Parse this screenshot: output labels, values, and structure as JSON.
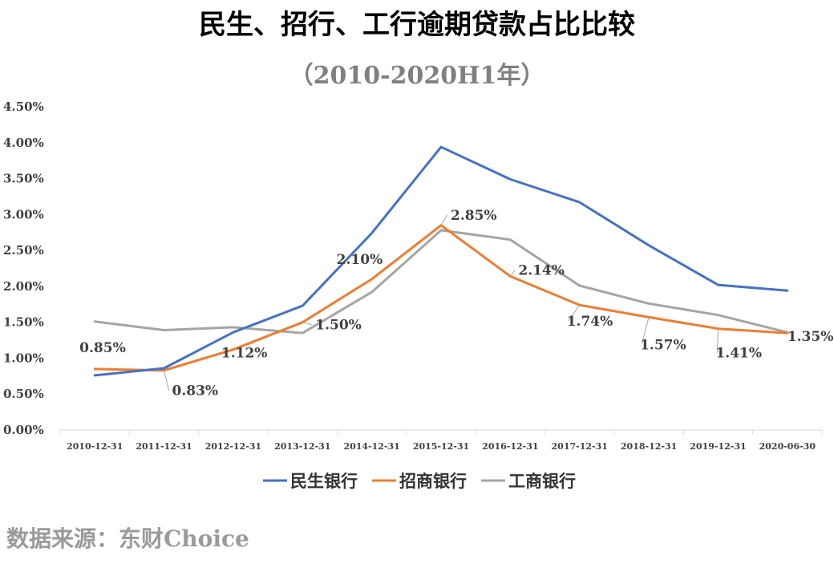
{
  "chart_data": {
    "type": "line",
    "title": "民生、招行、工行逾期贷款占比比较",
    "subtitle": "（2010-2020H1年）",
    "categories": [
      "2010-12-31",
      "2011-12-31",
      "2012-12-31",
      "2013-12-31",
      "2014-12-31",
      "2015-12-31",
      "2016-12-31",
      "2017-12-31",
      "2018-12-31",
      "2019-12-31",
      "2020-06-30"
    ],
    "ylim": [
      0,
      4.5
    ],
    "yticks": [
      "0.00%",
      "0.50%",
      "1.00%",
      "1.50%",
      "2.00%",
      "2.50%",
      "3.00%",
      "3.50%",
      "4.00%",
      "4.50%"
    ],
    "grid": false,
    "legend_position": "bottom",
    "series": [
      {
        "name": "民生银行",
        "color": "#4472c4",
        "values": [
          0.76,
          0.86,
          1.36,
          1.73,
          2.74,
          3.94,
          3.49,
          3.17,
          2.57,
          2.02,
          1.94
        ]
      },
      {
        "name": "招商银行",
        "color": "#ed7d31",
        "values": [
          0.85,
          0.83,
          1.12,
          1.5,
          2.1,
          2.85,
          2.14,
          1.74,
          1.57,
          1.41,
          1.35
        ]
      },
      {
        "name": "工商银行",
        "color": "#a5a5a5",
        "values": [
          1.51,
          1.39,
          1.43,
          1.35,
          1.92,
          2.78,
          2.65,
          2.01,
          1.76,
          1.6,
          1.36
        ]
      }
    ],
    "data_labels": {
      "series": "招商银行",
      "labels": [
        "0.85%",
        "0.83%",
        "1.12%",
        "1.50%",
        "2.10%",
        "2.85%",
        "2.14%",
        "1.74%",
        "1.57%",
        "1.41%",
        "1.35%"
      ]
    },
    "source": "数据来源：东财Choice"
  }
}
